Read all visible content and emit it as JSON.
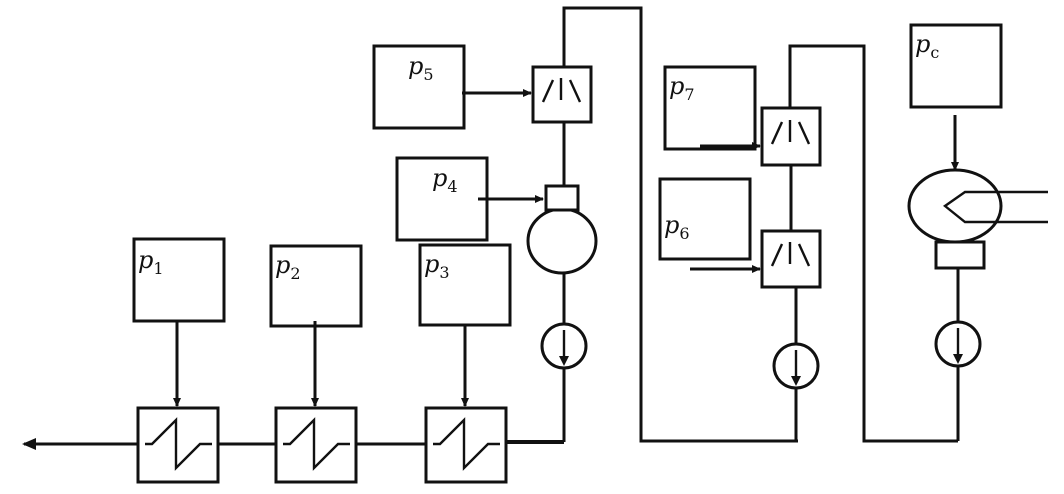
{
  "pressure_boxes": [
    {
      "id": "p1",
      "sym": "p",
      "sub": "1"
    },
    {
      "id": "p2",
      "sym": "p",
      "sub": "2"
    },
    {
      "id": "p3",
      "sym": "p",
      "sub": "3"
    },
    {
      "id": "p4",
      "sym": "p",
      "sub": "4"
    },
    {
      "id": "p5",
      "sym": "p",
      "sub": "5"
    },
    {
      "id": "p6",
      "sym": "p",
      "sub": "6"
    },
    {
      "id": "p7",
      "sym": "p",
      "sub": "7"
    },
    {
      "id": "pc",
      "sym": "p",
      "sub": "c"
    }
  ]
}
